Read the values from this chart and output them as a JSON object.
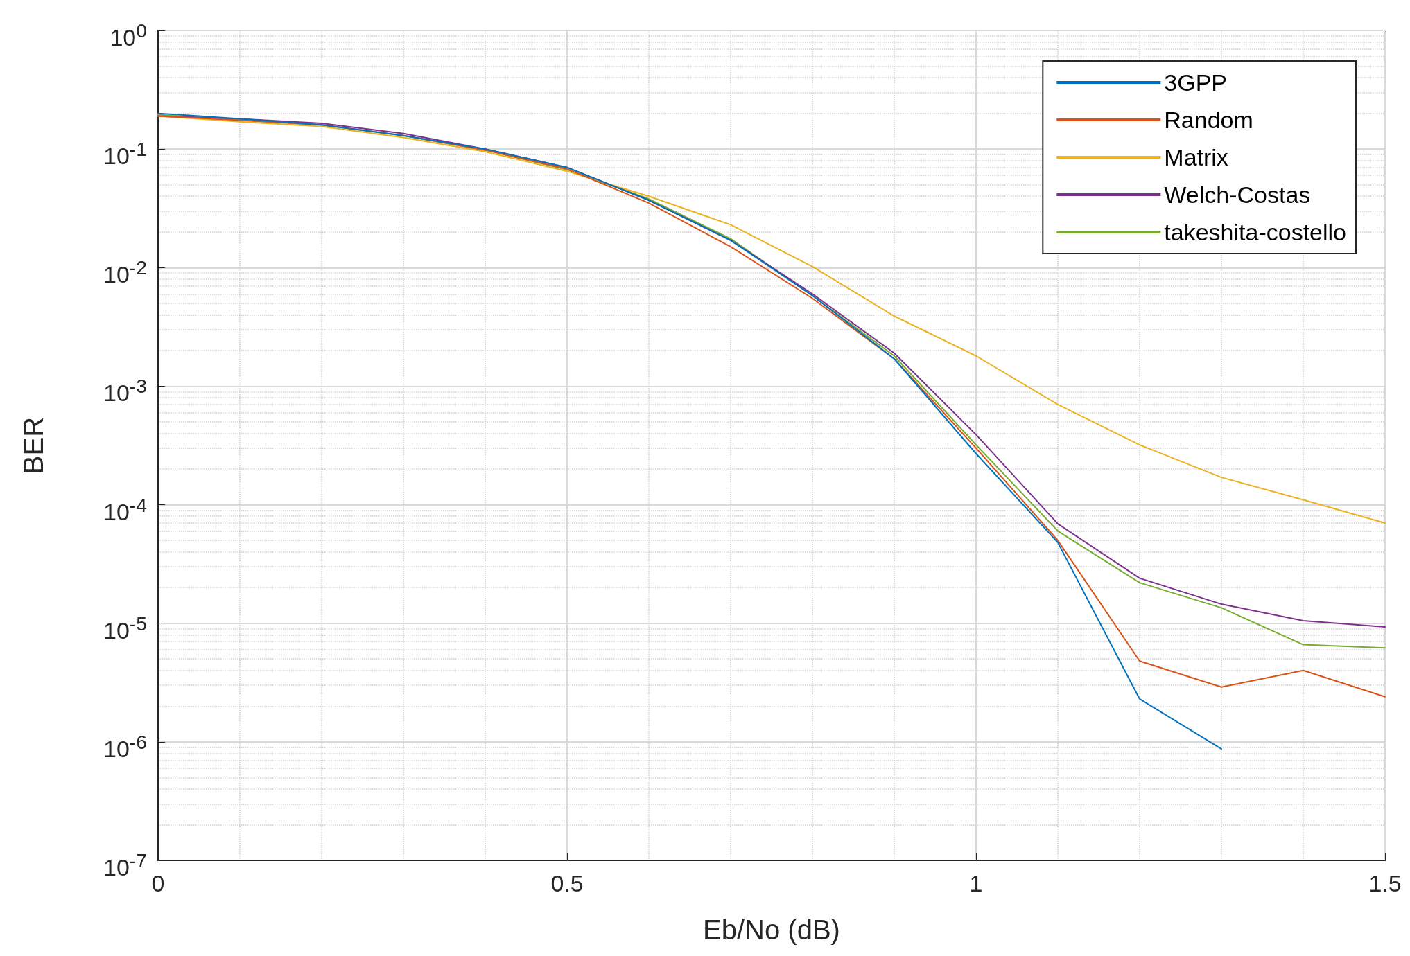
{
  "chart_data": {
    "type": "line",
    "xlabel": "Eb/No (dB)",
    "ylabel": "BER",
    "x": [
      0,
      0.1,
      0.2,
      0.3,
      0.4,
      0.5,
      0.6,
      0.7,
      0.8,
      0.9,
      1.0,
      1.1,
      1.2,
      1.3,
      1.4,
      1.5
    ],
    "series": [
      {
        "name": "3GPP",
        "color": "#0072bd",
        "values": [
          0.2,
          0.18,
          0.16,
          0.13,
          0.1,
          0.07,
          0.037,
          0.017,
          0.0058,
          0.0017,
          0.00027,
          4.8e-05,
          2.3e-06,
          8.7e-07,
          null,
          null
        ]
      },
      {
        "name": "Random",
        "color": "#d95319",
        "values": [
          0.19,
          0.175,
          0.16,
          0.13,
          0.098,
          0.068,
          0.035,
          0.015,
          0.0055,
          0.0017,
          0.0003,
          5e-05,
          4.8e-06,
          2.9e-06,
          4e-06,
          2.4e-06
        ]
      },
      {
        "name": "Matrix",
        "color": "#edb120",
        "values": [
          0.19,
          0.17,
          0.155,
          0.125,
          0.095,
          0.065,
          0.04,
          0.023,
          0.0102,
          0.0039,
          0.0018,
          0.0007,
          0.00032,
          0.00017,
          0.00011,
          7e-05
        ]
      },
      {
        "name": "Welch-Costas",
        "color": "#7e2f8e",
        "values": [
          0.19,
          0.18,
          0.165,
          0.135,
          0.1,
          0.07,
          0.037,
          0.017,
          0.006,
          0.0019,
          0.00039,
          6.9e-05,
          2.4e-05,
          1.45e-05,
          1.05e-05,
          9.3e-06
        ]
      },
      {
        "name": "takeshita-costello",
        "color": "#77ac30",
        "values": [
          0.195,
          0.175,
          0.16,
          0.13,
          0.098,
          0.067,
          0.038,
          0.0175,
          0.0058,
          0.0018,
          0.00032,
          6e-05,
          2.2e-05,
          1.35e-05,
          6.6e-06,
          6.2e-06
        ]
      }
    ],
    "log": "y",
    "xlim": [
      0,
      1.5
    ],
    "xticks": [
      0,
      0.5,
      1,
      1.5
    ],
    "ylim": [
      1e-07,
      1
    ],
    "yticks": [
      {
        "value": 1,
        "label": "10$^{0}$"
      },
      {
        "value": 0.1,
        "label": "10$^{-1}$"
      },
      {
        "value": 0.01,
        "label": "10$^{-2}$"
      },
      {
        "value": 0.001,
        "label": "10$^{-3}$"
      },
      {
        "value": 0.0001,
        "label": "10$^{-4}$"
      },
      {
        "value": 1e-05,
        "label": "10$^{-5}$"
      },
      {
        "value": 1e-06,
        "label": "10$^{-6}$"
      },
      {
        "value": 1e-07,
        "label": "10$^{-7}$"
      }
    ],
    "grid": true,
    "legend": "top right",
    "marker": "none",
    "line_style": "solid"
  }
}
